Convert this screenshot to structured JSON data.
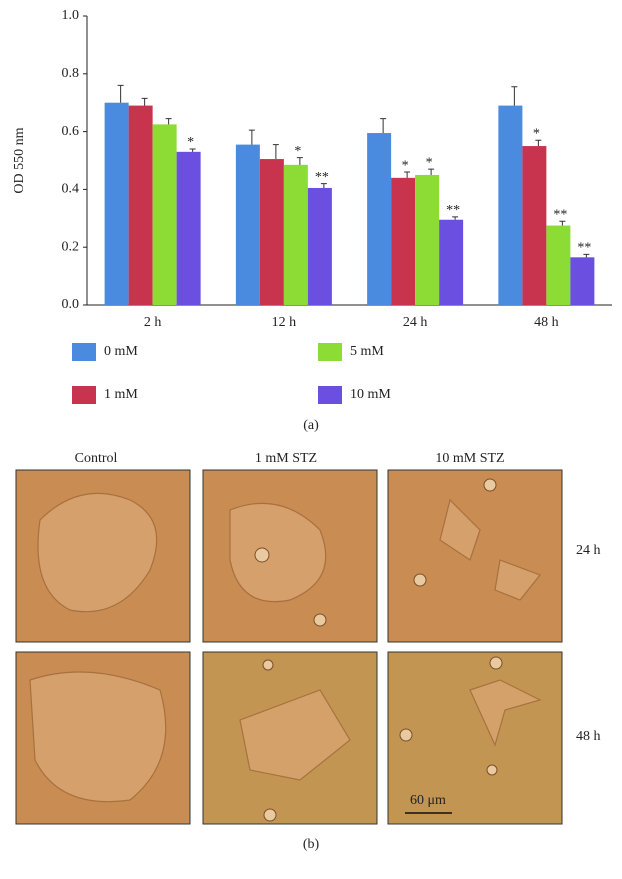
{
  "chart_data": {
    "type": "bar",
    "ylabel": "OD 550 nm",
    "categories": [
      "2 h",
      "12 h",
      "24 h",
      "48 h"
    ],
    "ylim": [
      0,
      1
    ],
    "yticks": [
      {
        "value": 0,
        "label": "0.0"
      },
      {
        "value": 0.2,
        "label": "0.2"
      },
      {
        "value": 0.4,
        "label": "0.4"
      },
      {
        "value": 0.6,
        "label": "0.6"
      },
      {
        "value": 0.8,
        "label": "0.8"
      },
      {
        "value": 1,
        "label": "1.0"
      }
    ],
    "series": [
      {
        "name": "0 mM",
        "color": "#4a8be0",
        "values": [
          0.7,
          0.555,
          0.595,
          0.69
        ],
        "errors": [
          0.06,
          0.05,
          0.05,
          0.065
        ],
        "significance": [
          null,
          null,
          null,
          null
        ]
      },
      {
        "name": "1 mM",
        "color": "#c8344e",
        "values": [
          0.69,
          0.505,
          0.44,
          0.55
        ],
        "errors": [
          0.025,
          0.05,
          0.02,
          0.02
        ],
        "significance": [
          null,
          null,
          "*",
          "*"
        ]
      },
      {
        "name": "5 mM",
        "color": "#8ddb35",
        "values": [
          0.625,
          0.485,
          0.45,
          0.275
        ],
        "errors": [
          0.02,
          0.025,
          0.02,
          0.015
        ],
        "significance": [
          null,
          "*",
          "*",
          "**"
        ]
      },
      {
        "name": "10 mM",
        "color": "#6b4fe0",
        "values": [
          0.53,
          0.405,
          0.295,
          0.165
        ],
        "errors": [
          0.01,
          0.015,
          0.01,
          0.01
        ],
        "significance": [
          "*",
          "**",
          "**",
          "**"
        ]
      }
    ]
  },
  "panel_a_label": "(a)",
  "panel_b": {
    "columns": [
      "Control",
      "1 mM STZ",
      "10 mM STZ"
    ],
    "rows": [
      "24 h",
      "48 h"
    ],
    "scale_bar": "60 μm",
    "label": "(b)"
  }
}
